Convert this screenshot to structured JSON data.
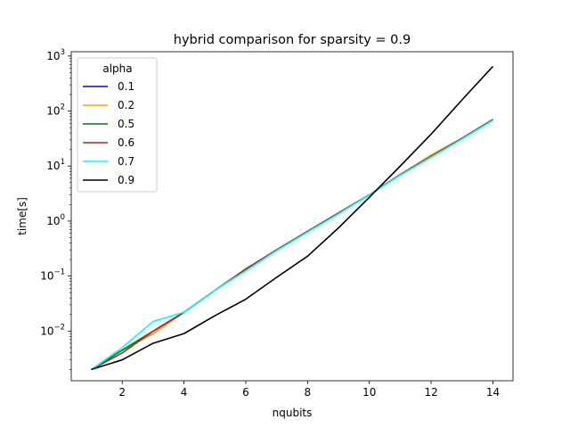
{
  "chart_data": {
    "type": "line",
    "title": "hybrid comparison for sparsity = 0.9",
    "xlabel": "nqubits",
    "ylabel": "time[s]",
    "xlim": [
      0.35,
      14.65
    ],
    "ylim": [
      0.00125,
      1200
    ],
    "yscale": "log",
    "xticks": [
      2,
      4,
      6,
      8,
      10,
      12,
      14
    ],
    "yticks": [
      {
        "value": 0.01,
        "base": "10",
        "exp": "−2"
      },
      {
        "value": 0.1,
        "base": "10",
        "exp": "−1"
      },
      {
        "value": 1,
        "base": "10",
        "exp": "0"
      },
      {
        "value": 10,
        "base": "10",
        "exp": "1"
      },
      {
        "value": 100,
        "base": "10",
        "exp": "2"
      },
      {
        "value": 1000,
        "base": "10",
        "exp": "3"
      }
    ],
    "legend": {
      "title": "alpha",
      "placement": "upper-left"
    },
    "x": [
      1,
      2,
      3,
      4,
      5,
      6,
      7,
      8,
      9,
      10,
      11,
      12,
      13,
      14
    ],
    "series": [
      {
        "name": "0.1",
        "color": "#0000ff",
        "values": [
          0.002,
          0.0045,
          0.009,
          0.022,
          0.055,
          0.13,
          0.3,
          0.65,
          1.4,
          3.0,
          7.0,
          15.0,
          32.0,
          70.0
        ]
      },
      {
        "name": "0.2",
        "color": "#ffa500",
        "values": [
          0.002,
          0.0045,
          0.009,
          0.022,
          0.055,
          0.13,
          0.3,
          0.65,
          1.4,
          3.0,
          7.0,
          16.0,
          32.0,
          70.0
        ]
      },
      {
        "name": "0.5",
        "color": "#008000",
        "values": [
          0.002,
          0.0045,
          0.01,
          0.022,
          0.055,
          0.13,
          0.3,
          0.65,
          1.4,
          3.0,
          7.0,
          15.0,
          32.0,
          70.0
        ]
      },
      {
        "name": "0.6",
        "color": "#a52a2a",
        "values": [
          0.002,
          0.004,
          0.01,
          0.022,
          0.055,
          0.135,
          0.3,
          0.65,
          1.4,
          3.0,
          7.0,
          15.0,
          32.0,
          70.0
        ]
      },
      {
        "name": "0.7",
        "color": "#00ffff",
        "values": [
          0.002,
          0.005,
          0.015,
          0.022,
          0.055,
          0.125,
          0.29,
          0.63,
          1.35,
          3.0,
          6.8,
          14.5,
          31.0,
          68.0
        ]
      },
      {
        "name": "0.9",
        "color": "#000000",
        "values": [
          0.002,
          0.003,
          0.006,
          0.009,
          0.019,
          0.038,
          0.095,
          0.23,
          0.75,
          2.7,
          10.0,
          38.0,
          160.0,
          650.0
        ]
      }
    ]
  }
}
